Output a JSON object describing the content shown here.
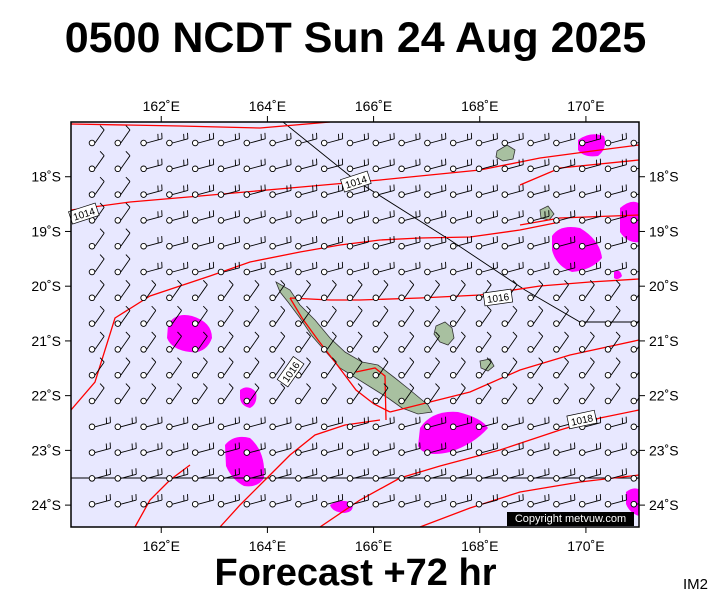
{
  "title": "0500 NCDT Sun 24 Aug 2025",
  "subtitle": "Forecast +72 hr",
  "image_code": "IM2",
  "copyright": "Copyright metvuw.com",
  "colors": {
    "ocean": "#e8e8ff",
    "isobar": "#ff0000",
    "rain": "#ff00ff",
    "land": "#a8c0a0",
    "wind_barb": "#000000",
    "boundary": "#000000"
  },
  "map": {
    "lon_range": [
      160.3,
      171.0
    ],
    "lat_range": [
      -24.4,
      -17.0
    ],
    "lon_ticks": [
      {
        "value": 162,
        "label": "162˚E"
      },
      {
        "value": 164,
        "label": "164˚E"
      },
      {
        "value": 166,
        "label": "166˚E"
      },
      {
        "value": 168,
        "label": "168˚E"
      },
      {
        "value": 170,
        "label": "170˚E"
      }
    ],
    "lat_ticks": [
      {
        "value": -18,
        "label": "18˚S"
      },
      {
        "value": -19,
        "label": "19˚S"
      },
      {
        "value": -20,
        "label": "20˚S"
      },
      {
        "value": -21,
        "label": "21˚S"
      },
      {
        "value": -22,
        "label": "22˚S"
      },
      {
        "value": -23,
        "label": "23˚S"
      },
      {
        "value": -24,
        "label": "24˚S"
      }
    ],
    "isobar_labels": [
      {
        "text": "1014",
        "lon": 161.3,
        "lat": -17.7
      },
      {
        "text": "1014",
        "lon": 160.5,
        "lat": -18.8
      },
      {
        "text": "1016",
        "lon": 168.2,
        "lat": -20.3
      },
      {
        "text": "1016",
        "lon": 164.3,
        "lat": -21.6
      },
      {
        "text": "1018",
        "lon": 167.7,
        "lat": -22.5
      }
    ]
  }
}
